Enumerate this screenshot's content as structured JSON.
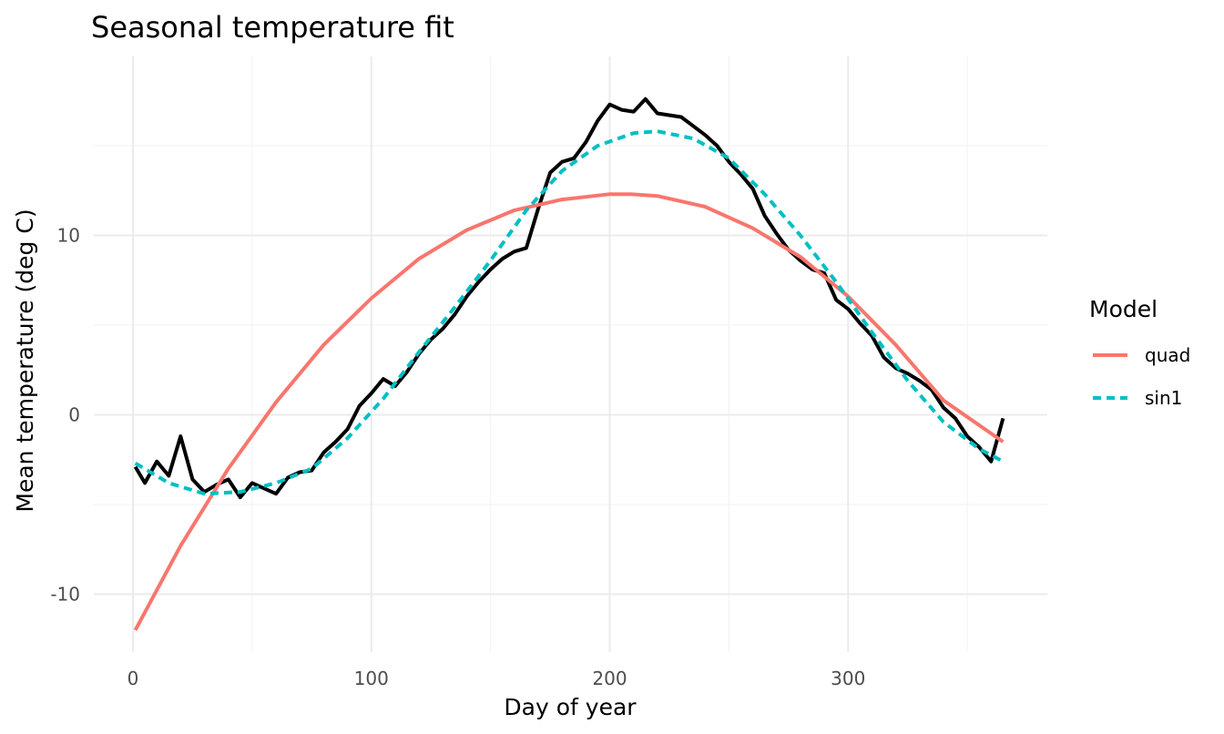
{
  "chart_data": {
    "type": "line",
    "title": "Seasonal temperature fit",
    "xlabel": "Day of year",
    "ylabel": "Mean temperature (deg C)",
    "xlim": [
      1,
      365
    ],
    "ylim": [
      -12,
      18
    ],
    "x_ticks": [
      0,
      100,
      200,
      300
    ],
    "x_tick_labels": [
      "0",
      "100",
      "200",
      "300"
    ],
    "y_ticks": [
      -10,
      0,
      10
    ],
    "y_tick_labels": [
      "-10",
      "0",
      "10"
    ],
    "grid": true,
    "legend": {
      "title": "Model",
      "position": "right"
    },
    "observed": {
      "color": "#000000",
      "x": [
        1,
        5,
        10,
        15,
        20,
        25,
        30,
        35,
        40,
        45,
        50,
        55,
        60,
        65,
        70,
        75,
        80,
        85,
        90,
        95,
        100,
        105,
        110,
        115,
        120,
        125,
        130,
        135,
        140,
        145,
        150,
        155,
        160,
        165,
        170,
        175,
        180,
        185,
        190,
        195,
        200,
        205,
        210,
        215,
        220,
        225,
        230,
        235,
        240,
        245,
        250,
        255,
        260,
        265,
        270,
        275,
        280,
        285,
        290,
        295,
        300,
        305,
        310,
        315,
        320,
        325,
        330,
        335,
        340,
        345,
        350,
        355,
        360,
        365
      ],
      "y": [
        -2.9,
        -3.8,
        -2.6,
        -3.4,
        -1.2,
        -3.6,
        -4.3,
        -3.9,
        -3.6,
        -4.6,
        -3.8,
        -4.1,
        -4.4,
        -3.5,
        -3.2,
        -3.1,
        -2.1,
        -1.5,
        -0.8,
        0.5,
        1.2,
        2.0,
        1.6,
        2.4,
        3.4,
        4.2,
        4.8,
        5.6,
        6.6,
        7.4,
        8.1,
        8.7,
        9.1,
        9.3,
        11.5,
        13.5,
        14.1,
        14.3,
        15.2,
        16.4,
        17.3,
        17.0,
        16.9,
        17.6,
        16.8,
        16.7,
        16.6,
        16.1,
        15.6,
        15.0,
        14.1,
        13.4,
        12.6,
        11.1,
        10.1,
        9.2,
        8.6,
        8.1,
        7.9,
        6.4,
        5.9,
        5.1,
        4.4,
        3.2,
        2.6,
        2.3,
        1.9,
        1.4,
        0.4,
        -0.2,
        -1.2,
        -1.8,
        -2.6,
        -0.2
      ]
    },
    "series": [
      {
        "name": "quad",
        "color": "#F8766D",
        "dash": "solid",
        "x": [
          1,
          20,
          40,
          60,
          80,
          100,
          120,
          140,
          160,
          180,
          200,
          209,
          220,
          240,
          260,
          280,
          300,
          320,
          340,
          365
        ],
        "y": [
          -12.0,
          -7.3,
          -3.0,
          0.7,
          3.9,
          6.5,
          8.7,
          10.3,
          11.4,
          12.0,
          12.3,
          12.3,
          12.2,
          11.6,
          10.4,
          8.8,
          6.6,
          3.9,
          0.8,
          -1.5
        ]
      },
      {
        "name": "sin1",
        "color": "#00BFC4",
        "dash": "dashed",
        "x": [
          1,
          15,
          30,
          45,
          60,
          75,
          90,
          105,
          120,
          135,
          150,
          165,
          180,
          195,
          210,
          220,
          235,
          250,
          265,
          280,
          295,
          310,
          325,
          340,
          355,
          365
        ],
        "y": [
          -2.7,
          -3.8,
          -4.4,
          -4.3,
          -3.8,
          -3.0,
          -1.3,
          0.9,
          3.5,
          6.0,
          8.6,
          11.4,
          13.6,
          15.0,
          15.7,
          15.8,
          15.4,
          14.3,
          12.3,
          10.0,
          7.4,
          4.6,
          1.9,
          -0.4,
          -1.9,
          -2.6
        ]
      }
    ]
  }
}
